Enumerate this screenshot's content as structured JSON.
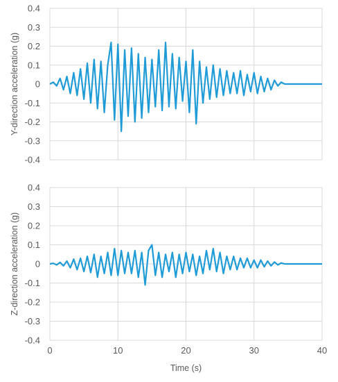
{
  "chart_data": [
    {
      "type": "line",
      "title": "",
      "xlabel": "",
      "ylabel": "Y-direction acceleration (g)",
      "xlim": [
        0,
        40
      ],
      "ylim": [
        -0.4,
        0.4
      ],
      "x_ticks": [
        "0",
        "10",
        "20",
        "30",
        "40"
      ],
      "y_ticks": [
        "0.4",
        "0.3",
        "0.2",
        "0.1",
        "0",
        "-0.1",
        "-0.2",
        "-0.3",
        "-0.4"
      ],
      "grid": true,
      "legend": "none",
      "color": "#1F9BD7",
      "series": [
        {
          "x": [
            0,
            0.5,
            1,
            1.5,
            2,
            2.5,
            3,
            3.5,
            4,
            4.5,
            5,
            5.5,
            6,
            6.5,
            7,
            7.5,
            8,
            8.5,
            9,
            9.5,
            10,
            10.5,
            11,
            11.5,
            12,
            12.5,
            13,
            13.5,
            14,
            14.5,
            15,
            15.5,
            16,
            16.5,
            17,
            17.5,
            18,
            18.5,
            19,
            19.5,
            20,
            20.5,
            21,
            21.5,
            22,
            22.5,
            23,
            23.5,
            24,
            24.5,
            25,
            25.5,
            26,
            26.5,
            27,
            27.5,
            28,
            28.5,
            29,
            29.5,
            30,
            30.5,
            31,
            31.5,
            32,
            32.5,
            33,
            33.5,
            34,
            34.5,
            35,
            35.5,
            36,
            37,
            38,
            39,
            40
          ],
          "y": [
            0,
            0.01,
            -0.01,
            0.03,
            -0.03,
            0.04,
            -0.05,
            0.06,
            -0.06,
            0.08,
            -0.08,
            0.11,
            -0.1,
            0.13,
            -0.13,
            0.12,
            -0.15,
            0.1,
            0.22,
            -0.19,
            0.21,
            -0.25,
            0.18,
            -0.17,
            0.19,
            -0.2,
            0.16,
            -0.18,
            0.14,
            -0.15,
            0.13,
            -0.12,
            0.18,
            -0.14,
            0.22,
            -0.12,
            0.16,
            -0.13,
            0.14,
            -0.09,
            0.12,
            -0.15,
            0.18,
            -0.21,
            0.12,
            -0.1,
            0.09,
            -0.08,
            0.1,
            -0.07,
            0.08,
            -0.06,
            0.07,
            -0.05,
            0.06,
            -0.05,
            0.07,
            -0.06,
            0.05,
            -0.04,
            0.06,
            -0.05,
            0.04,
            -0.04,
            0.03,
            -0.03,
            0.02,
            -0.01,
            0.01,
            0,
            0,
            0,
            0,
            0,
            0,
            0,
            0
          ]
        }
      ]
    },
    {
      "type": "line",
      "title": "",
      "xlabel": "Time (s)",
      "ylabel": "Z-direction acceleration (g)",
      "xlim": [
        0,
        40
      ],
      "ylim": [
        -0.4,
        0.4
      ],
      "x_ticks": [
        "0",
        "10",
        "20",
        "30",
        "40"
      ],
      "y_ticks": [
        "0.4",
        "0.3",
        "0.2",
        "0.1",
        "0",
        "-0.1",
        "-0.2",
        "-0.3",
        "-0.4"
      ],
      "grid": true,
      "legend": "none",
      "color": "#1F9BD7",
      "series": [
        {
          "x": [
            0,
            0.5,
            1,
            1.5,
            2,
            2.5,
            3,
            3.5,
            4,
            4.5,
            5,
            5.5,
            6,
            6.5,
            7,
            7.5,
            8,
            8.5,
            9,
            9.5,
            10,
            10.5,
            11,
            11.5,
            12,
            12.5,
            13,
            13.5,
            14,
            14.5,
            15,
            15.5,
            16,
            16.5,
            17,
            17.5,
            18,
            18.5,
            19,
            19.5,
            20,
            20.5,
            21,
            21.5,
            22,
            22.5,
            23,
            23.5,
            24,
            24.5,
            25,
            25.5,
            26,
            26.5,
            27,
            27.5,
            28,
            28.5,
            29,
            29.5,
            30,
            30.5,
            31,
            31.5,
            32,
            32.5,
            33,
            33.5,
            34,
            34.5,
            35,
            35.5,
            36,
            37,
            38,
            39,
            40
          ],
          "y": [
            0,
            0.003,
            -0.005,
            0.008,
            -0.01,
            0.015,
            -0.02,
            0.025,
            -0.03,
            0.03,
            -0.04,
            0.04,
            -0.045,
            0.05,
            -0.07,
            0.04,
            -0.05,
            0.06,
            -0.06,
            0.08,
            -0.06,
            0.07,
            -0.05,
            0.06,
            -0.05,
            0.07,
            -0.07,
            0.06,
            -0.11,
            0.07,
            0.1,
            -0.06,
            0.06,
            -0.07,
            0.05,
            -0.04,
            0.06,
            -0.07,
            0.05,
            -0.05,
            0.06,
            -0.04,
            0.05,
            -0.06,
            0.04,
            -0.05,
            0.07,
            -0.03,
            0.08,
            -0.04,
            0.06,
            -0.05,
            0.04,
            -0.03,
            0.04,
            -0.03,
            0.03,
            -0.02,
            0.03,
            -0.02,
            0.02,
            -0.02,
            0.02,
            -0.015,
            0.015,
            -0.01,
            0.01,
            -0.005,
            0.005,
            0,
            0,
            0,
            0,
            0,
            0,
            0,
            0
          ]
        }
      ]
    }
  ]
}
